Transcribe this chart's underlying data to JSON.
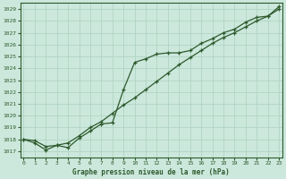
{
  "title": "Graphe pression niveau de la mer (hPa)",
  "bg_color": "#cce8dc",
  "grid_color": "#b0d4c4",
  "line_color": "#2d5a2d",
  "ylim": [
    1016.5,
    1029.5
  ],
  "xlim": [
    -0.3,
    23.3
  ],
  "yticks": [
    1017,
    1018,
    1019,
    1020,
    1021,
    1022,
    1023,
    1024,
    1025,
    1026,
    1027,
    1028,
    1029
  ],
  "xticks": [
    0,
    1,
    2,
    3,
    4,
    5,
    6,
    7,
    8,
    9,
    10,
    11,
    12,
    13,
    14,
    15,
    16,
    17,
    18,
    19,
    20,
    21,
    22,
    23
  ],
  "line_jagged_x": [
    0,
    1,
    2,
    3,
    4,
    5,
    6,
    7,
    8,
    9,
    10,
    11,
    12,
    13,
    14,
    15,
    16,
    17,
    18,
    19,
    20,
    21,
    22,
    23
  ],
  "line_jagged_y": [
    1018.0,
    1017.7,
    1017.1,
    1017.5,
    1017.3,
    1018.1,
    1018.7,
    1019.3,
    1019.4,
    1022.2,
    1024.5,
    1024.8,
    1025.2,
    1025.3,
    1025.3,
    1025.5,
    1026.1,
    1026.5,
    1027.0,
    1027.3,
    1027.9,
    1028.3,
    1028.4,
    1029.2
  ],
  "line_straight_x": [
    0,
    1,
    2,
    3,
    4,
    5,
    6,
    7,
    8,
    9,
    10,
    11,
    12,
    13,
    14,
    15,
    16,
    17,
    18,
    19,
    20,
    21,
    22,
    23
  ],
  "line_straight_y": [
    1018.0,
    1017.9,
    1017.4,
    1017.5,
    1017.7,
    1018.3,
    1019.0,
    1019.5,
    1020.2,
    1020.9,
    1021.5,
    1022.2,
    1022.9,
    1023.6,
    1024.3,
    1024.9,
    1025.5,
    1026.1,
    1026.6,
    1027.0,
    1027.5,
    1028.0,
    1028.4,
    1029.0
  ]
}
